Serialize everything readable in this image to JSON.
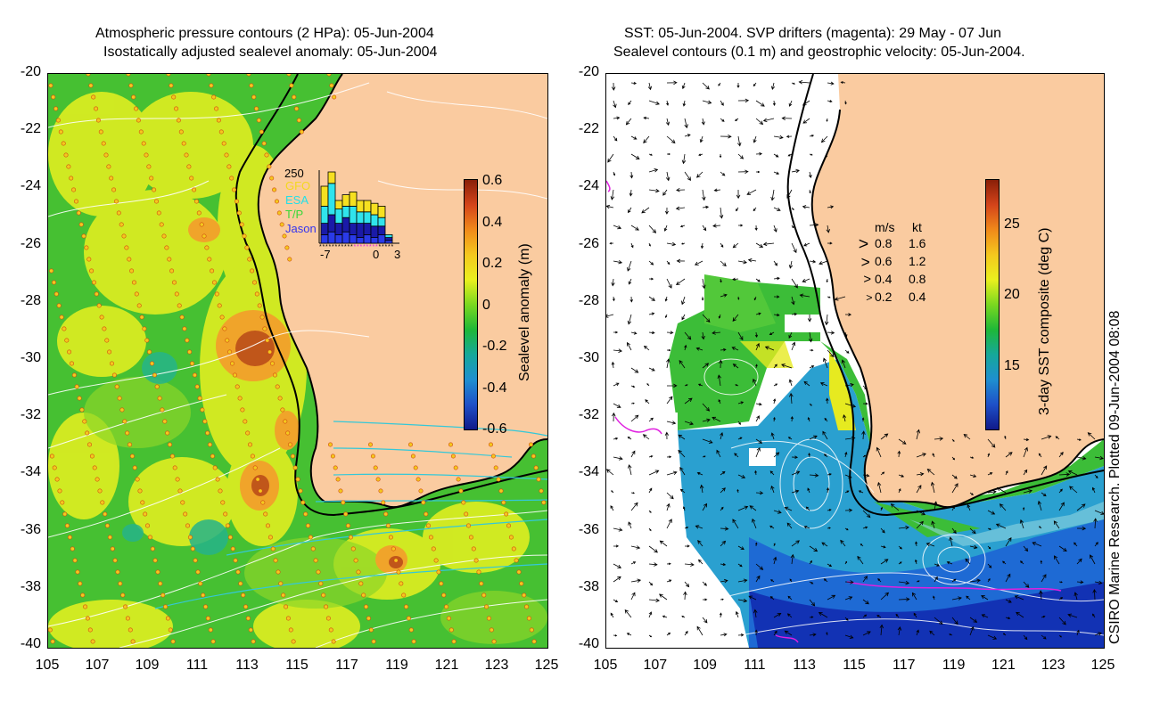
{
  "left_panel": {
    "title_line1": "Atmospheric pressure contours (2 HPa): 05-Jun-2004",
    "title_line2": "Isostatically adjusted sealevel anomaly: 05-Jun-2004",
    "colorbar": {
      "label": "Sealevel anomaly (m)",
      "ticks": [
        "0.6",
        "0.4",
        "0.2",
        "0",
        "-0.2",
        "-0.4",
        "-0.6"
      ],
      "colors": [
        "#8a1f08",
        "#d4441a",
        "#f08a1a",
        "#f4c81e",
        "#eaf01e",
        "#7ad820",
        "#1eb838",
        "#16a89a",
        "#1e8fd0",
        "#1e50c8",
        "#101a8a"
      ]
    },
    "inset": {
      "ymax_label": "250",
      "legend": [
        "GFO",
        "ESA",
        "T/P",
        "Jason"
      ],
      "legend_colors": [
        "#f4d81e",
        "#22e0e8",
        "#38d838",
        "#3333ee"
      ],
      "x_ticks": [
        "-7",
        "0",
        "3"
      ],
      "stacks": [
        {
          "jason": 30,
          "tp": 40,
          "esa": 60,
          "gfo": 70
        },
        {
          "jason": 40,
          "tp": 60,
          "esa": 110,
          "gfo": 40
        },
        {
          "jason": 30,
          "tp": 40,
          "esa": 50,
          "gfo": 30
        },
        {
          "jason": 40,
          "tp": 50,
          "esa": 40,
          "gfo": 40
        },
        {
          "jason": 30,
          "tp": 40,
          "esa": 60,
          "gfo": 50
        },
        {
          "jason": 20,
          "tp": 50,
          "esa": 40,
          "gfo": 40
        },
        {
          "jason": 30,
          "tp": 40,
          "esa": 40,
          "gfo": 40
        },
        {
          "jason": 20,
          "tp": 40,
          "esa": 40,
          "gfo": 40
        },
        {
          "jason": 30,
          "tp": 30,
          "esa": 30,
          "gfo": 40
        },
        {
          "jason": 10,
          "tp": 10,
          "esa": 10,
          "gfo": 0
        }
      ]
    }
  },
  "right_panel": {
    "title_line1": "SST: 05-Jun-2004. SVP drifters (magenta): 29 May - 07 Jun",
    "title_line2": "Sealevel contours (0.1 m) and geostrophic velocity: 05-Jun-2004.",
    "colorbar": {
      "label": "3-day SST composite (deg C)",
      "ticks": [
        "25",
        "20",
        "15"
      ],
      "colors": [
        "#8a1f08",
        "#d4441a",
        "#f08a1a",
        "#f4c81e",
        "#eaf01e",
        "#7ad820",
        "#1eb838",
        "#16a89a",
        "#1e8fd0",
        "#1e50c8",
        "#101a8a"
      ]
    },
    "velocity_legend": {
      "header_ms": "m/s",
      "header_kt": "kt",
      "rows": [
        {
          "ms": "0.8",
          "kt": "1.6",
          "speed": 0.8
        },
        {
          "ms": "0.6",
          "kt": "1.2",
          "speed": 0.6
        },
        {
          "ms": "0.4",
          "kt": "0.8",
          "speed": 0.4
        },
        {
          "ms": "0.2",
          "kt": "0.4",
          "speed": 0.2
        }
      ]
    }
  },
  "axes": {
    "lat_ticks": [
      "-20",
      "-22",
      "-24",
      "-26",
      "-28",
      "-30",
      "-32",
      "-34",
      "-36",
      "-38",
      "-40"
    ],
    "lon_ticks": [
      "105",
      "107",
      "109",
      "111",
      "113",
      "115",
      "117",
      "119",
      "121",
      "123",
      "125"
    ]
  },
  "credit": "CSIRO Marine Research. Plotted 09-Jun-2004 08:08",
  "colors": {
    "land": "#facba0",
    "ocean_green": "#46c032",
    "ocean_yellow": "#e2ee1e",
    "warm_orange": "#f09a28",
    "hot_red": "#b84a10",
    "cool_blue": "#1c5ad2",
    "deep_blue": "#0c1c96",
    "cyan": "#34c8d8",
    "magenta": "#e020e0"
  }
}
